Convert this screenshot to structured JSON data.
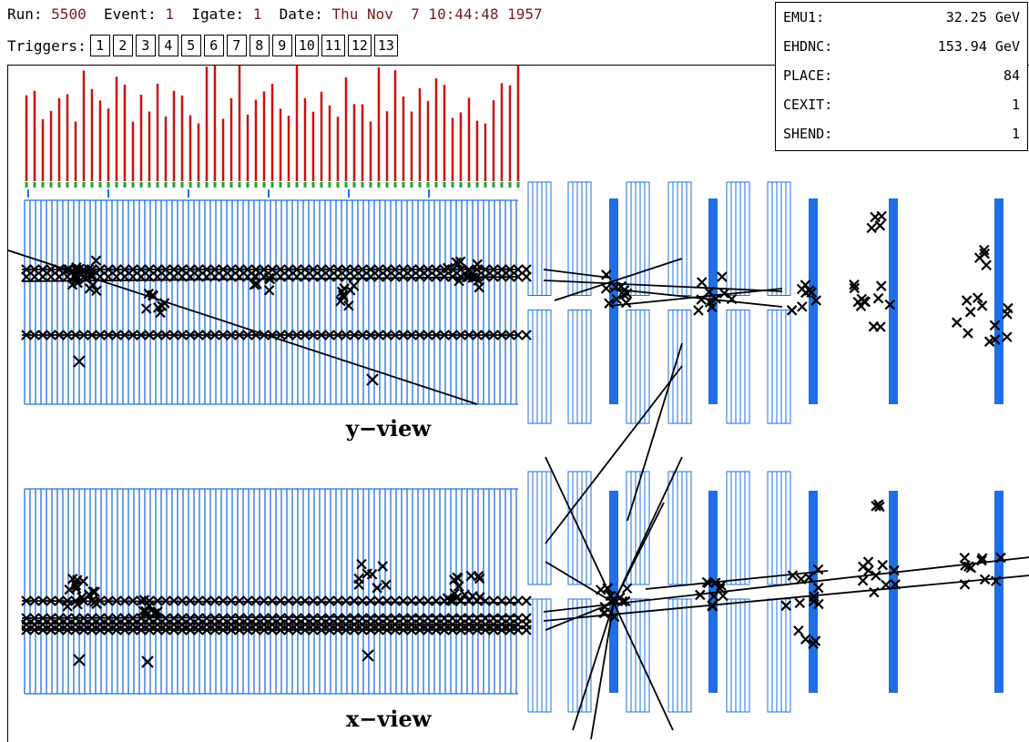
{
  "header": {
    "run_label": "Run:",
    "run_value": "5500",
    "event_label": "Event:",
    "event_value": "1",
    "igate_label": "Igate:",
    "igate_value": "1",
    "date_label": "Date:",
    "date_value": "Thu Nov  7 10:44:48 1957"
  },
  "triggers": {
    "label": "Triggers:",
    "items": [
      "1",
      "2",
      "3",
      "4",
      "5",
      "6",
      "7",
      "8",
      "9",
      "10",
      "11",
      "12",
      "13"
    ]
  },
  "info_panel": [
    {
      "name": "EMU1:",
      "value": "32.25 GeV"
    },
    {
      "name": "EHDNC:",
      "value": "153.94 GeV"
    },
    {
      "name": "PLACE:",
      "value": "84"
    },
    {
      "name": "CEXIT:",
      "value": "1"
    },
    {
      "name": "SHEND:",
      "value": "1"
    }
  ],
  "views": {
    "top": "y−view",
    "bottom": "x−view"
  },
  "colors": {
    "detector": "#1e6fe6",
    "histogram": "#cc1111",
    "marker": "#2aa02a",
    "track": "#000000"
  }
}
